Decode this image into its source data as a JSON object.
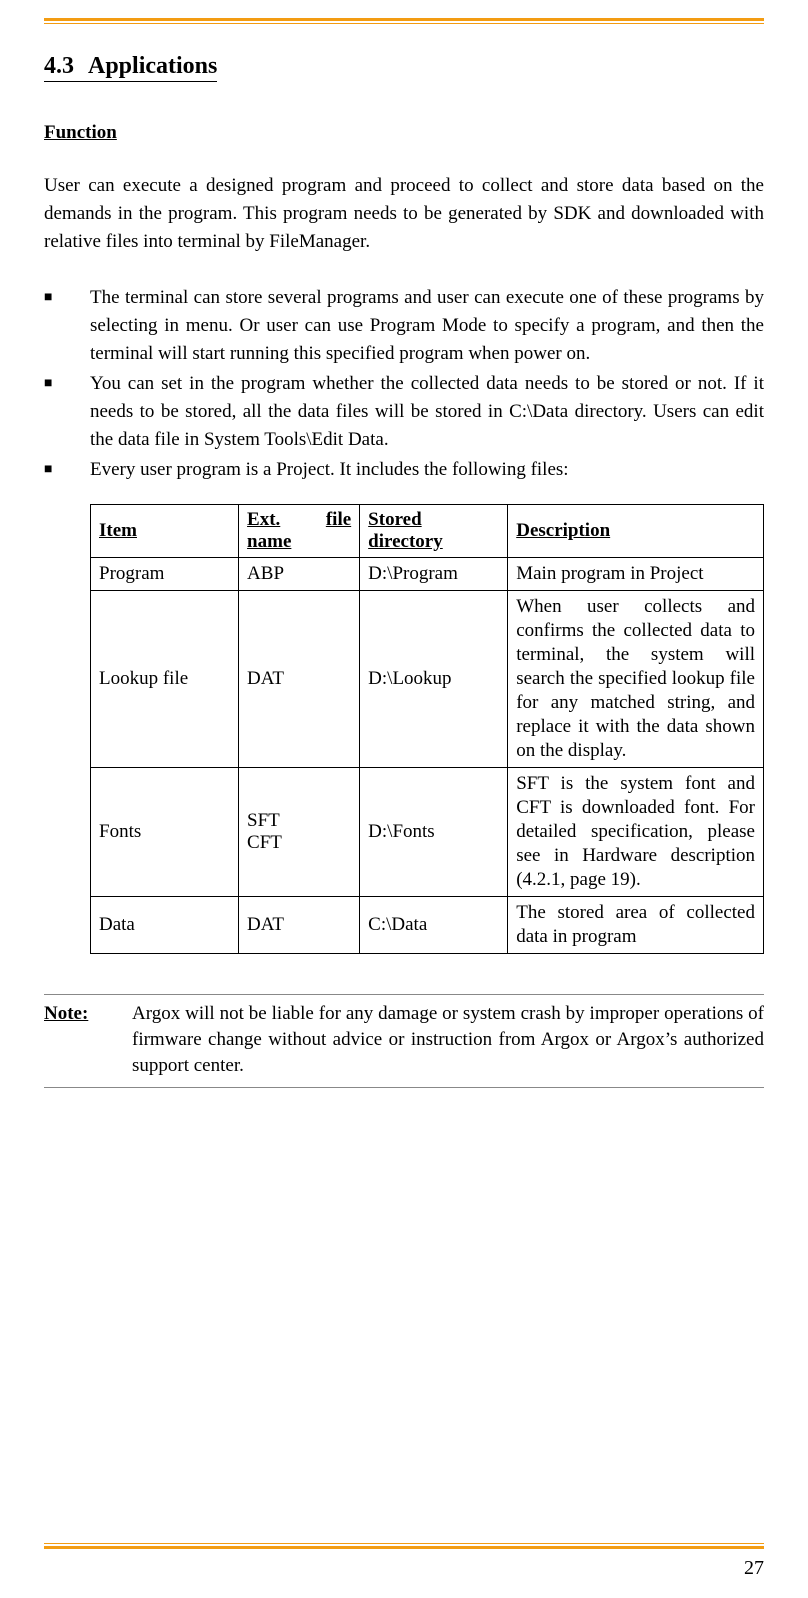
{
  "page_number": "27",
  "colors": {
    "accent": "#f39c12",
    "text": "#000000",
    "background": "#ffffff"
  },
  "section": {
    "number": "4.3",
    "title": "Applications"
  },
  "subhead": "Function",
  "intro": "User can execute a designed program and proceed to collect and store data based on the demands in the program. This program needs to be generated by SDK and downloaded with relative files into terminal by FileManager.",
  "bullets": [
    "The terminal can store several programs and user can execute one of these programs by selecting in menu. Or user can use Program Mode to specify a program, and then the terminal will start running this specified program when power on.",
    "You can set in the program whether the collected data needs to be stored or not. If it needs to be stored, all the data files will be stored in C:\\Data directory. Users can edit the data file in System Tools\\Edit Data.",
    "Every user program is a Project. It includes the following files:"
  ],
  "table": {
    "headers": {
      "item": "Item",
      "ext_line1": "Ext.",
      "ext_line2": "file",
      "ext_line3": "name",
      "dir_line1": "Stored",
      "dir_line2": "directory",
      "desc": "Description"
    },
    "rows": [
      {
        "item": "Program",
        "ext": "ABP",
        "dir": "D:\\Program",
        "desc": "Main program in Project"
      },
      {
        "item": "Lookup file",
        "ext": "DAT",
        "dir": "D:\\Lookup",
        "desc": "When user collects and confirms the collected data to terminal, the system will search the specified lookup file for any matched string, and replace it with the data shown on the display."
      },
      {
        "item": "Fonts",
        "ext": "SFT\nCFT",
        "dir": "D:\\Fonts",
        "desc": "SFT is the system font and CFT is downloaded font. For detailed specification, please see in Hardware description (4.2.1, page 19)."
      },
      {
        "item": "Data",
        "ext": "DAT",
        "dir": "C:\\Data",
        "desc": "The stored area of collected data in program"
      }
    ]
  },
  "note": {
    "label": "Note:",
    "text": "Argox will not be liable for any damage or system crash by improper operations of firmware change without advice or instruction from Argox or Argox’s authorized support center."
  }
}
